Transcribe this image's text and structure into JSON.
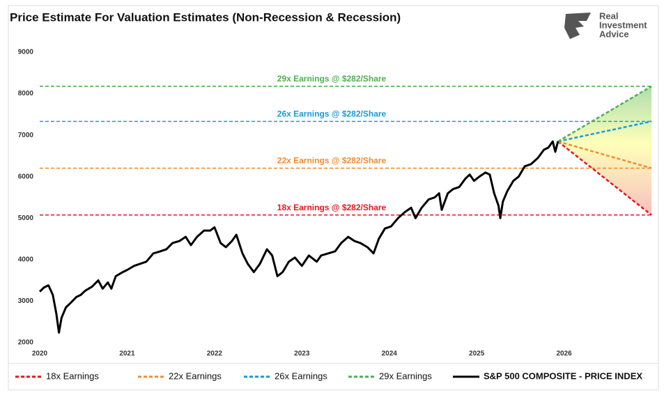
{
  "chart_data": {
    "type": "line",
    "title": "Price Estimate For Valuation Estimates (Non-Recession & Recession)",
    "logo": [
      "Real",
      "Investment",
      "Advice"
    ],
    "xlim": [
      2020,
      2027
    ],
    "xticks": [
      2020,
      2021,
      2022,
      2023,
      2024,
      2025,
      2026
    ],
    "ylim": [
      2000,
      9000
    ],
    "yticks": [
      2000,
      3000,
      4000,
      5000,
      6000,
      7000,
      8000,
      9000
    ],
    "reference_lines": [
      {
        "value": 5076,
        "label": "18x Earnings @ $282/Share",
        "color": "#e8141c"
      },
      {
        "value": 6204,
        "label": "22x Earnings @ $282/Share",
        "color": "#f08c2e"
      },
      {
        "value": 7332,
        "label": "26x Earnings @ $282/Share",
        "color": "#1a9ad6"
      },
      {
        "value": 8178,
        "label": "29x Earnings @ $282/Share",
        "color": "#4caf50"
      }
    ],
    "series": [
      {
        "name": "18x Earnings",
        "color": "#e8141c",
        "dashed": true,
        "x": [
          2025.93,
          2027
        ],
        "values": [
          6850,
          5076
        ]
      },
      {
        "name": "22x Earnings",
        "color": "#f08c2e",
        "dashed": true,
        "x": [
          2025.93,
          2027
        ],
        "values": [
          6850,
          6204
        ]
      },
      {
        "name": "26x Earnings",
        "color": "#1a9ad6",
        "dashed": true,
        "x": [
          2025.93,
          2027
        ],
        "values": [
          6850,
          7332
        ]
      },
      {
        "name": "29x Earnings",
        "color": "#4caf50",
        "dashed": true,
        "x": [
          2025.93,
          2027
        ],
        "values": [
          6850,
          8178
        ]
      },
      {
        "name": "S&P 500 COMPOSITE - PRICE INDEX",
        "color": "#000000",
        "dashed": false,
        "x": [
          2020.0,
          2020.05,
          2020.1,
          2020.15,
          2020.19,
          2020.22,
          2020.25,
          2020.3,
          2020.35,
          2020.42,
          2020.47,
          2020.52,
          2020.6,
          2020.67,
          2020.72,
          2020.78,
          2020.82,
          2020.87,
          2020.95,
          2021.0,
          2021.08,
          2021.15,
          2021.22,
          2021.3,
          2021.38,
          2021.45,
          2021.52,
          2021.6,
          2021.67,
          2021.73,
          2021.8,
          2021.88,
          2021.95,
          2022.0,
          2022.07,
          2022.13,
          2022.2,
          2022.25,
          2022.32,
          2022.38,
          2022.45,
          2022.52,
          2022.6,
          2022.66,
          2022.72,
          2022.78,
          2022.85,
          2022.92,
          2023.0,
          2023.08,
          2023.17,
          2023.22,
          2023.3,
          2023.38,
          2023.45,
          2023.53,
          2023.6,
          2023.67,
          2023.75,
          2023.82,
          2023.88,
          2023.95,
          2024.02,
          2024.1,
          2024.18,
          2024.25,
          2024.3,
          2024.37,
          2024.45,
          2024.52,
          2024.57,
          2024.6,
          2024.67,
          2024.73,
          2024.8,
          2024.87,
          2024.92,
          2024.97,
          2025.03,
          2025.1,
          2025.15,
          2025.2,
          2025.25,
          2025.27,
          2025.3,
          2025.35,
          2025.42,
          2025.48,
          2025.55,
          2025.62,
          2025.7,
          2025.77,
          2025.82,
          2025.87,
          2025.9,
          2025.93
        ],
        "values": [
          3230,
          3330,
          3380,
          3150,
          2700,
          2240,
          2600,
          2850,
          2950,
          3100,
          3150,
          3250,
          3350,
          3500,
          3300,
          3450,
          3300,
          3600,
          3700,
          3750,
          3850,
          3900,
          3950,
          4150,
          4200,
          4250,
          4400,
          4450,
          4550,
          4350,
          4550,
          4700,
          4700,
          4780,
          4400,
          4300,
          4450,
          4600,
          4150,
          3900,
          3700,
          3900,
          4250,
          4100,
          3600,
          3700,
          3950,
          4050,
          3850,
          4100,
          3950,
          4100,
          4150,
          4200,
          4400,
          4550,
          4450,
          4400,
          4300,
          4150,
          4500,
          4750,
          4800,
          5000,
          5150,
          5250,
          5000,
          5250,
          5450,
          5500,
          5600,
          5200,
          5600,
          5700,
          5750,
          5950,
          6050,
          5900,
          6000,
          6100,
          6050,
          5600,
          5300,
          5000,
          5400,
          5650,
          5900,
          6000,
          6250,
          6300,
          6450,
          6650,
          6700,
          6850,
          6600,
          6850
        ]
      }
    ]
  }
}
